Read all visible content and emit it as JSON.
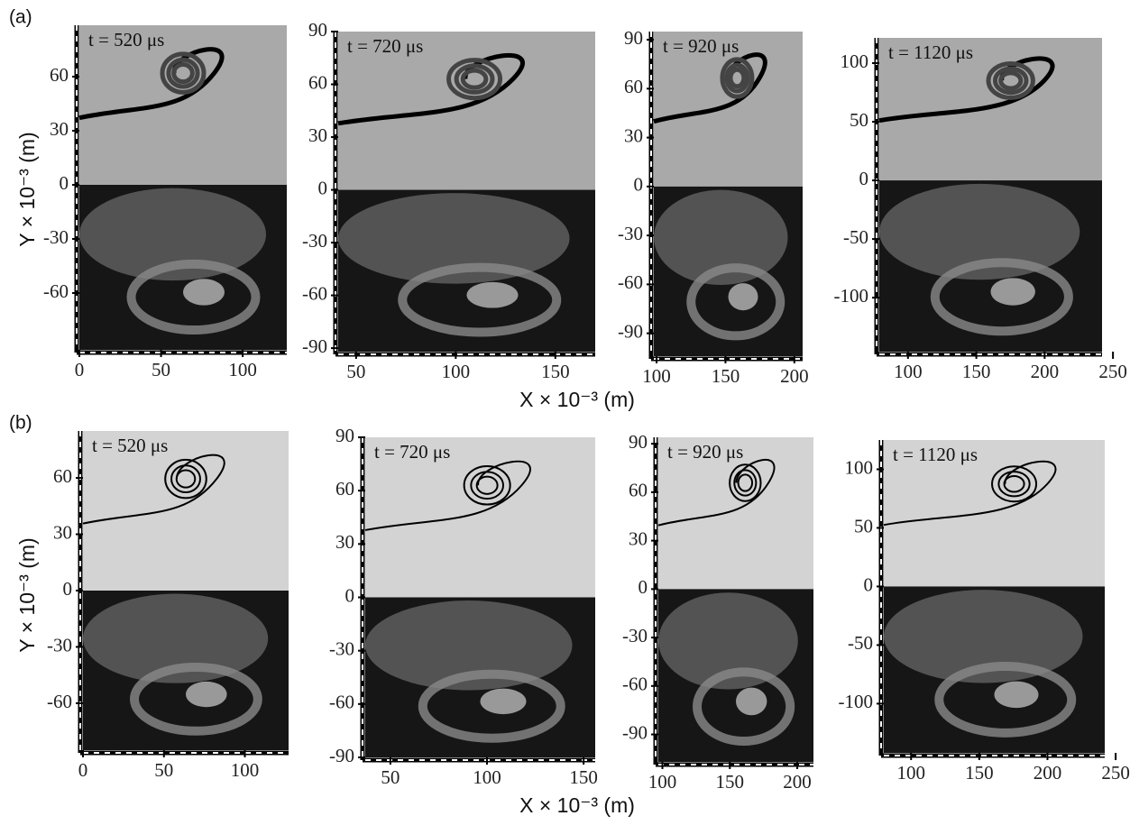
{
  "rows": [
    {
      "label": "(a)",
      "x_label": "X × 10⁻³ (m)",
      "y_label": "Y × 10⁻³ (m)",
      "panels": [
        {
          "time": "t = 520 μs",
          "xlim": [
            0,
            127
          ],
          "ylim": [
            -91.5,
            88.5
          ],
          "xticks": [
            0,
            50,
            100
          ],
          "yticks": [
            60,
            30,
            0,
            -30,
            -60
          ]
        },
        {
          "time": "t = 720 μs",
          "xlim": [
            41,
            170
          ],
          "ylim": [
            -92,
            90
          ],
          "xticks": [
            50,
            100,
            150
          ],
          "yticks": [
            90,
            60,
            30,
            0,
            -30,
            -60,
            -90
          ]
        },
        {
          "time": "t = 920 μs",
          "xlim": [
            98,
            206
          ],
          "ylim": [
            -104,
            95
          ],
          "xticks": [
            100,
            150,
            200
          ],
          "yticks": [
            90,
            60,
            30,
            0,
            -30,
            -60,
            -90
          ]
        },
        {
          "time": "t = 1120 μs",
          "xlim": [
            79,
            242
          ],
          "ylim": [
            -146,
            121.5
          ],
          "xticks": [
            100,
            150,
            200,
            250
          ],
          "yticks": [
            100,
            50,
            0,
            -50,
            -100
          ]
        }
      ]
    },
    {
      "label": "(b)",
      "x_label": "X × 10⁻³ (m)",
      "y_label": "Y × 10⁻³ (m)",
      "panels": [
        {
          "time": "t = 520 μs",
          "xlim": [
            0,
            127
          ],
          "ylim": [
            -85,
            85
          ],
          "xticks": [
            0,
            50,
            100
          ],
          "yticks": [
            60,
            30,
            0,
            -30,
            -60
          ]
        },
        {
          "time": "t = 720 μs",
          "xlim": [
            37,
            156
          ],
          "ylim": [
            -90,
            90
          ],
          "xticks": [
            50,
            100,
            150
          ],
          "yticks": [
            90,
            60,
            30,
            0,
            -30,
            -60,
            -90
          ]
        },
        {
          "time": "t = 920 μs",
          "xlim": [
            97,
            212
          ],
          "ylim": [
            -107,
            94
          ],
          "xticks": [
            100,
            150,
            200
          ],
          "yticks": [
            90,
            60,
            30,
            0,
            -30,
            -60,
            -90
          ]
        },
        {
          "time": "t = 1120 μs",
          "xlim": [
            80,
            242
          ],
          "ylim": [
            -142,
            125
          ],
          "xticks": [
            100,
            150,
            200,
            250
          ],
          "yticks": [
            100,
            50,
            0,
            -50,
            -100
          ]
        }
      ]
    }
  ]
}
